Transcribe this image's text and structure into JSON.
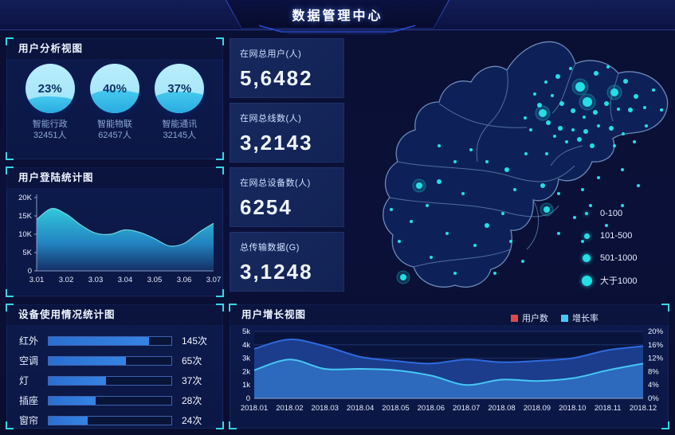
{
  "header": {
    "title": "数据管理中心"
  },
  "colors": {
    "accent_cyan": "#38d6e6",
    "dot_cyan": "#22e0e6",
    "bar_blue": "#3081de",
    "series_user": "#2f6ae0",
    "series_rate": "#45c8f5",
    "legend_red": "#e0484c"
  },
  "panels": {
    "user_analysis": {
      "title": "用户分析视图"
    },
    "login": {
      "title": "用户登陆统计图"
    },
    "device": {
      "title": "设备使用情况统计图"
    },
    "growth": {
      "title": "用户增长视图"
    }
  },
  "user_analysis": {
    "items": [
      {
        "percent": "23%",
        "label": "智能行政",
        "count": "32451人",
        "fill_pct": 34
      },
      {
        "percent": "40%",
        "label": "智能物联",
        "count": "62457人",
        "fill_pct": 46
      },
      {
        "percent": "37%",
        "label": "智能通讯",
        "count": "32145人",
        "fill_pct": 43
      }
    ]
  },
  "stats": [
    {
      "label": "在网总用户(人)",
      "value": "5,6482"
    },
    {
      "label": "在网总线数(人)",
      "value": "3,2143"
    },
    {
      "label": "在网总设备数(人)",
      "value": "6254"
    },
    {
      "label": "总传输数据(G)",
      "value": "3,1248"
    }
  ],
  "map": {
    "legend": [
      {
        "label": "0-100",
        "size": 4
      },
      {
        "label": "101-500",
        "size": 7
      },
      {
        "label": "501-1000",
        "size": 10
      },
      {
        "label": "大于1000",
        "size": 13
      }
    ],
    "dots": [
      [
        298,
        67,
        6
      ],
      [
        307,
        86,
        6
      ],
      [
        341,
        74,
        5
      ],
      [
        251,
        100,
        5
      ],
      [
        270,
        54,
        3
      ],
      [
        286,
        44,
        2
      ],
      [
        318,
        50,
        3
      ],
      [
        333,
        42,
        2
      ],
      [
        355,
        60,
        3
      ],
      [
        368,
        79,
        3
      ],
      [
        379,
        93,
        2
      ],
      [
        361,
        96,
        3
      ],
      [
        346,
        95,
        2
      ],
      [
        331,
        88,
        3
      ],
      [
        317,
        99,
        3
      ],
      [
        303,
        105,
        2
      ],
      [
        289,
        97,
        3
      ],
      [
        275,
        88,
        3
      ],
      [
        263,
        78,
        2
      ],
      [
        258,
        112,
        3
      ],
      [
        273,
        119,
        3
      ],
      [
        289,
        121,
        2
      ],
      [
        305,
        123,
        3
      ],
      [
        321,
        116,
        2
      ],
      [
        337,
        119,
        3
      ],
      [
        352,
        126,
        2
      ],
      [
        297,
        133,
        3
      ],
      [
        281,
        136,
        2
      ],
      [
        313,
        141,
        3
      ],
      [
        266,
        129,
        2
      ],
      [
        247,
        90,
        3
      ],
      [
        241,
        76,
        2
      ],
      [
        255,
        61,
        2
      ],
      [
        390,
        71,
        2
      ],
      [
        400,
        96,
        2
      ],
      [
        381,
        116,
        2
      ],
      [
        366,
        136,
        2
      ],
      [
        341,
        141,
        2
      ],
      [
        256,
        151,
        2
      ],
      [
        236,
        121,
        2
      ],
      [
        229,
        106,
        2
      ],
      [
        230,
        151,
        2
      ],
      [
        206,
        171,
        3
      ],
      [
        181,
        161,
        2
      ],
      [
        161,
        146,
        2
      ],
      [
        141,
        161,
        2
      ],
      [
        121,
        141,
        2
      ],
      [
        216,
        196,
        2
      ],
      [
        251,
        191,
        3
      ],
      [
        271,
        201,
        2
      ],
      [
        301,
        196,
        2
      ],
      [
        321,
        181,
        2
      ],
      [
        256,
        221,
        4
      ],
      [
        291,
        231,
        2
      ],
      [
        311,
        216,
        2
      ],
      [
        271,
        251,
        2
      ],
      [
        301,
        261,
        2
      ],
      [
        331,
        241,
        2
      ],
      [
        351,
        216,
        2
      ],
      [
        371,
        191,
        2
      ],
      [
        351,
        171,
        2
      ],
      [
        121,
        186,
        3
      ],
      [
        96,
        191,
        4
      ],
      [
        151,
        201,
        2
      ],
      [
        86,
        236,
        2
      ],
      [
        131,
        251,
        2
      ],
      [
        71,
        261,
        2
      ],
      [
        111,
        281,
        2
      ],
      [
        76,
        306,
        4
      ],
      [
        141,
        301,
        2
      ],
      [
        181,
        241,
        3
      ],
      [
        201,
        226,
        2
      ],
      [
        166,
        266,
        2
      ],
      [
        211,
        261,
        2
      ],
      [
        226,
        286,
        2
      ],
      [
        191,
        301,
        2
      ],
      [
        61,
        221,
        2
      ],
      [
        106,
        216,
        2
      ]
    ]
  },
  "chart_data": [
    {
      "id": "login",
      "type": "area",
      "title": "用户登陆统计图",
      "x_ticks": [
        "3.01",
        "3.02",
        "3.03",
        "3.04",
        "3.05",
        "3.06",
        "3.07"
      ],
      "y_ticks": [
        "0",
        "5K",
        "10K",
        "15K",
        "20K"
      ],
      "ylim": [
        0,
        20000
      ],
      "values": [
        14000,
        17000,
        15500,
        12500,
        10300,
        10000,
        11200,
        10500,
        8800,
        6800,
        7500,
        10500,
        13000
      ]
    },
    {
      "id": "device_usage",
      "type": "bar",
      "orientation": "horizontal",
      "categories": [
        "红外",
        "空调",
        "灯",
        "插座",
        "窗帘"
      ],
      "values": [
        145,
        65,
        37,
        28,
        24
      ],
      "value_labels": [
        "145次",
        "65次",
        "37次",
        "28次",
        "24次"
      ],
      "bar_pct": [
        82,
        63,
        47,
        38,
        32
      ]
    },
    {
      "id": "user_growth",
      "type": "area",
      "title": "用户增长视图",
      "categories": [
        "2018.01",
        "2018.02",
        "2018.03",
        "2018.04",
        "2018.05",
        "2018.06",
        "2018.07",
        "2018.08",
        "2018.09",
        "2018.10",
        "2018.11",
        "2018.12"
      ],
      "series": [
        {
          "name": "用户数",
          "axis": "left",
          "color": "#2f6ae0",
          "values": [
            3700,
            4400,
            3900,
            3100,
            2800,
            2600,
            2900,
            2700,
            2800,
            3000,
            3600,
            3900
          ]
        },
        {
          "name": "增长率",
          "axis": "right",
          "color": "#45c8f5",
          "values": [
            8.4,
            11.6,
            8.8,
            8.8,
            8.4,
            6.8,
            4.0,
            5.6,
            5.2,
            6.0,
            8.4,
            10.4
          ]
        }
      ],
      "ylim_left": [
        0,
        5000
      ],
      "y_ticks_left": [
        "0",
        "1k",
        "2k",
        "3k",
        "4k",
        "5k"
      ],
      "ylim_right": [
        0,
        20
      ],
      "y_ticks_right": [
        "0%",
        "4%",
        "8%",
        "12%",
        "16%",
        "20%"
      ],
      "legend": [
        {
          "name": "用户数",
          "color": "#e0484c"
        },
        {
          "name": "增长率",
          "color": "#45c8f5"
        }
      ]
    },
    {
      "id": "user_analysis_gauges",
      "type": "pie",
      "categories": [
        "智能行政",
        "智能物联",
        "智能通讯"
      ],
      "values": [
        23,
        40,
        37
      ],
      "counts": [
        "32451人",
        "62457人",
        "32145人"
      ]
    }
  ]
}
